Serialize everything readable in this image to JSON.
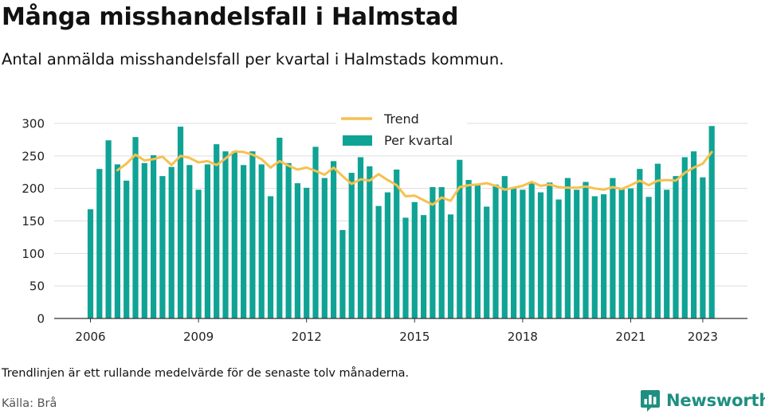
{
  "header": {
    "title": "Många misshandelsfall i Halmstad",
    "subtitle": "Antal anmälda misshandelsfall per kvartal i Halmstads kommun."
  },
  "footer": {
    "note": "Trendlinjen är ett rullande medelvärde för de senaste tolv månaderna.",
    "source": "Källa: Brå",
    "brand": "Newsworthy"
  },
  "colors": {
    "bars": "#0fa395",
    "trend": "#f5c150",
    "grid": "#dddddd",
    "axis": "#333333",
    "brand": "#1e8f80"
  },
  "icons": {
    "brand_logo": "bar-chart-logo-icon"
  },
  "chart_data": {
    "type": "bar",
    "x_ticks": [
      "2006",
      "2009",
      "2012",
      "2015",
      "2018",
      "2021",
      "2023"
    ],
    "y_ticks": [
      0,
      50,
      100,
      150,
      200,
      250,
      300
    ],
    "ylim": [
      0,
      300
    ],
    "legend": {
      "position": "top-center",
      "entries": [
        "Trend",
        "Per kvartal"
      ]
    },
    "grid": true,
    "quarters_start": "2006 Q1",
    "series": [
      {
        "name": "Per kvartal",
        "kind": "bar",
        "values": [
          168,
          230,
          274,
          237,
          212,
          279,
          239,
          251,
          219,
          233,
          295,
          236,
          198,
          237,
          268,
          257,
          257,
          236,
          257,
          237,
          188,
          278,
          239,
          208,
          201,
          264,
          216,
          242,
          136,
          224,
          248,
          234,
          173,
          194,
          229,
          155,
          179,
          159,
          202,
          202,
          160,
          244,
          213,
          205,
          172,
          206,
          219,
          201,
          198,
          209,
          194,
          209,
          183,
          216,
          198,
          210,
          188,
          191,
          216,
          199,
          200,
          230,
          187,
          238,
          198,
          219,
          248,
          257,
          217,
          296
        ]
      },
      {
        "name": "Trend",
        "kind": "line",
        "values": [
          null,
          null,
          null,
          228,
          238,
          252,
          243,
          245,
          249,
          236,
          250,
          247,
          240,
          242,
          236,
          246,
          257,
          256,
          252,
          245,
          232,
          242,
          235,
          229,
          232,
          227,
          221,
          232,
          219,
          207,
          214,
          212,
          222,
          213,
          205,
          188,
          189,
          182,
          175,
          186,
          181,
          202,
          205,
          206,
          208,
          204,
          198,
          201,
          204,
          210,
          204,
          206,
          202,
          201,
          201,
          203,
          200,
          198,
          202,
          199,
          205,
          212,
          205,
          212,
          213,
          212,
          224,
          232,
          238,
          256
        ]
      }
    ]
  }
}
